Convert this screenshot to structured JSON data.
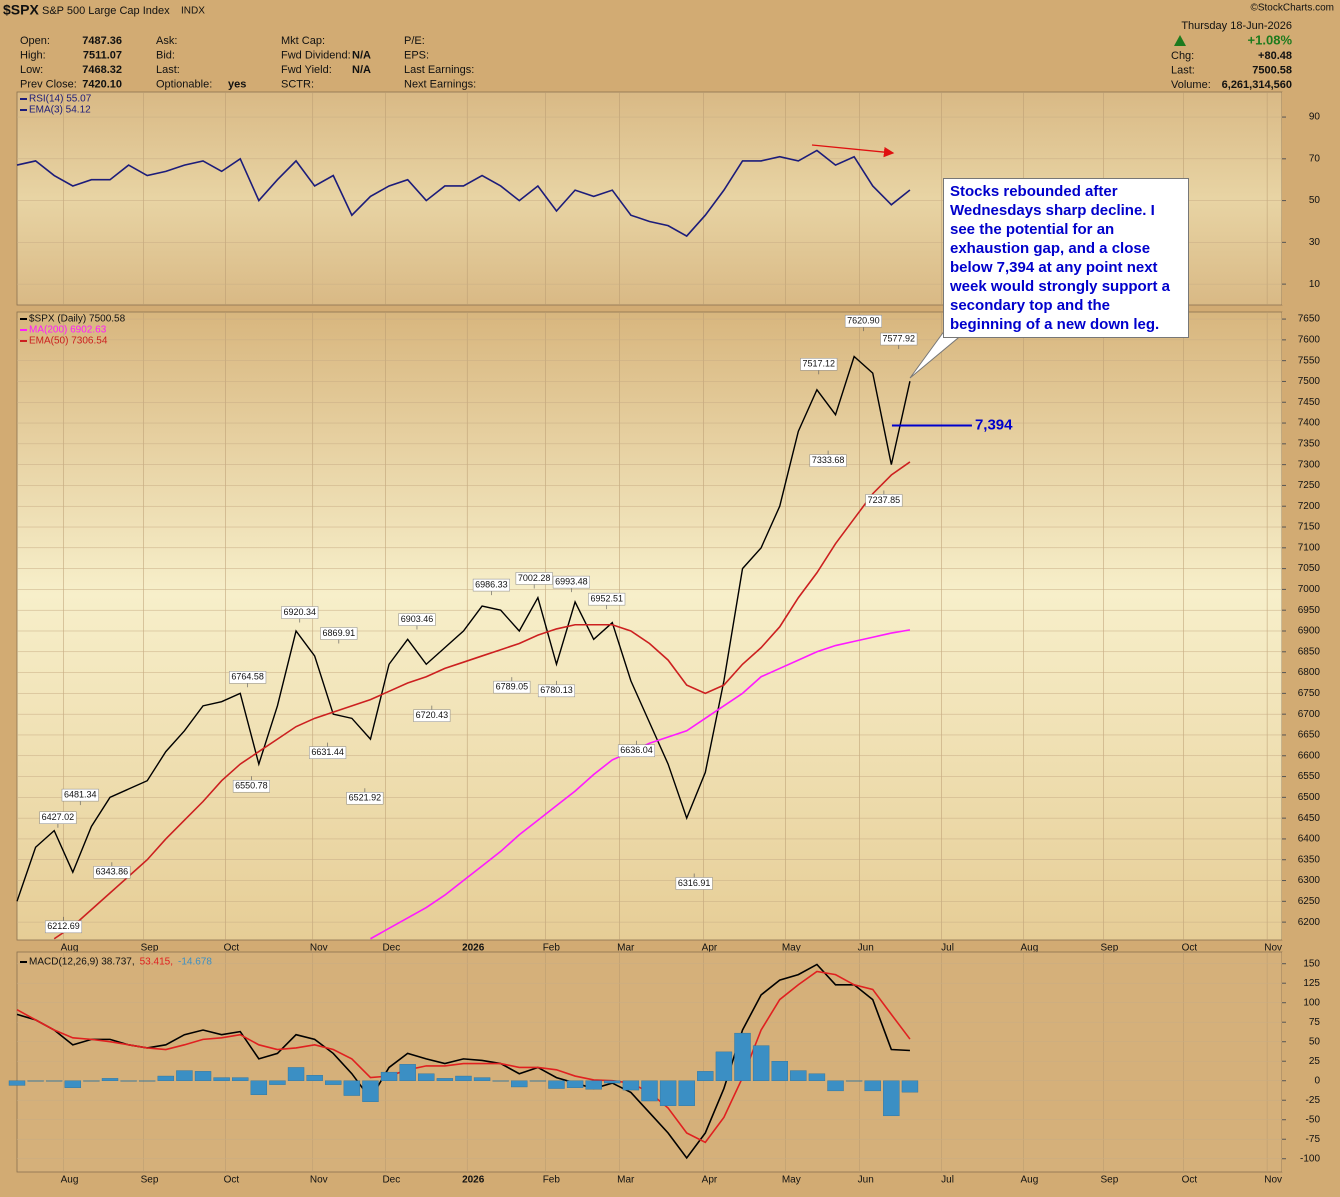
{
  "header": {
    "symbol": "$SPX",
    "name": "S&P 500 Large Cap Index",
    "exchange": "INDX",
    "date": "Thursday  18-Jun-2026",
    "copyright": "©StockCharts.com",
    "change_pct": "+1.08%",
    "fields": [
      [
        {
          "label": "Open:",
          "value": "7487.36"
        },
        {
          "label": "High:",
          "value": "7511.07"
        },
        {
          "label": "Low:",
          "value": "7468.32"
        },
        {
          "label": "Prev Close:",
          "value": "7420.10"
        }
      ],
      [
        {
          "label": "Ask:"
        },
        {
          "label": "Bid:"
        },
        {
          "label": "Last:"
        },
        {
          "label": "Optionable:",
          "value": "yes"
        }
      ],
      [
        {
          "label": "Mkt Cap:"
        },
        {
          "label": "Fwd Dividend:",
          "value": "N/A"
        },
        {
          "label": "Fwd Yield:",
          "value": "N/A"
        },
        {
          "label": "SCTR:"
        }
      ],
      [
        {
          "label": "P/E:"
        },
        {
          "label": "EPS:"
        },
        {
          "label": "Last Earnings:"
        },
        {
          "label": "Next Earnings:"
        }
      ]
    ],
    "quote": [
      {
        "label": "Chg:",
        "value": "+80.48"
      },
      {
        "label": "Last:",
        "value": "7500.58"
      },
      {
        "label": "Volume:",
        "value": "6,261,314,560"
      }
    ]
  },
  "chart_data": [
    {
      "type": "line",
      "grid": true,
      "xlim": [
        0,
        68
      ],
      "ylim": [
        0,
        102
      ],
      "yticks": [
        10,
        30,
        50,
        70,
        90
      ],
      "x": [
        0,
        1,
        2,
        3,
        4,
        5,
        6,
        7,
        8,
        9,
        10,
        11,
        12,
        13,
        14,
        15,
        16,
        17,
        18,
        19,
        20,
        21,
        22,
        23,
        24,
        25,
        26,
        27,
        28,
        29,
        30,
        31,
        32,
        33,
        34,
        35,
        36,
        37,
        38,
        39,
        40,
        41,
        42,
        43,
        44,
        45,
        46,
        47,
        48
      ],
      "series": [
        {
          "name": "RSI(14) 55.07",
          "color": "#1c1c7a",
          "values": [
            67,
            69,
            62,
            57,
            60,
            60,
            67,
            62,
            64,
            67,
            69,
            64,
            70,
            50,
            60,
            69,
            57,
            62,
            43,
            52,
            57,
            60,
            50,
            57,
            57,
            62,
            57,
            50,
            57,
            45,
            55,
            52,
            55,
            43,
            40,
            38,
            33,
            43,
            55,
            69,
            69,
            71,
            69,
            74,
            67,
            71,
            57,
            48,
            55.07
          ]
        }
      ],
      "extra_legend": {
        "name": "EMA(3) 54.12",
        "color": "#1c1c7a"
      }
    },
    {
      "type": "line",
      "grid": true,
      "xlim": [
        0,
        68
      ],
      "ylim": [
        6157,
        7667
      ],
      "yticks": [
        6200,
        6250,
        6300,
        6350,
        6400,
        6450,
        6500,
        6550,
        6600,
        6650,
        6700,
        6750,
        6800,
        6850,
        6900,
        6950,
        7000,
        7050,
        7100,
        7150,
        7200,
        7250,
        7300,
        7350,
        7400,
        7450,
        7500,
        7550,
        7600,
        7650
      ],
      "xticks": [
        {
          "value": 2.5,
          "label": "Aug"
        },
        {
          "value": 6.8,
          "label": "Sep"
        },
        {
          "value": 11.2,
          "label": "Oct"
        },
        {
          "value": 15.9,
          "label": "Nov"
        },
        {
          "value": 19.8,
          "label": "Dec"
        },
        {
          "value": 24.2,
          "label": "2026"
        },
        {
          "value": 28.4,
          "label": "Feb"
        },
        {
          "value": 32.4,
          "label": "Mar"
        },
        {
          "value": 36.9,
          "label": "Apr"
        },
        {
          "value": 41.3,
          "label": "May"
        },
        {
          "value": 45.3,
          "label": "Jun"
        },
        {
          "value": 49.7,
          "label": "Jul"
        },
        {
          "value": 54.1,
          "label": "Aug"
        },
        {
          "value": 58.4,
          "label": "Sep"
        },
        {
          "value": 62.7,
          "label": "Oct"
        },
        {
          "value": 67.2,
          "label": "Nov"
        }
      ],
      "x": [
        0,
        1,
        2,
        3,
        4,
        5,
        6,
        7,
        8,
        9,
        10,
        11,
        12,
        13,
        14,
        15,
        16,
        17,
        18,
        19,
        20,
        21,
        22,
        23,
        24,
        25,
        26,
        27,
        28,
        29,
        30,
        31,
        32,
        33,
        34,
        35,
        36,
        37,
        38,
        39,
        40,
        41,
        42,
        43,
        44,
        45,
        46,
        47,
        48
      ],
      "series": [
        {
          "name": "$SPX (Daily) 7500.58",
          "color": "#000000",
          "values": [
            6250,
            6380,
            6420,
            6320,
            6430,
            6500,
            6520,
            6540,
            6610,
            6660,
            6720,
            6730,
            6750,
            6580,
            6720,
            6900,
            6840,
            6700,
            6690,
            6640,
            6820,
            6880,
            6820,
            6860,
            6900,
            6960,
            6950,
            6900,
            6980,
            6820,
            6970,
            6880,
            6920,
            6780,
            6680,
            6580,
            6450,
            6560,
            6780,
            7050,
            7100,
            7200,
            7380,
            7480,
            7420,
            7560,
            7520,
            7300,
            7500.58
          ]
        },
        {
          "name": "MA(200) 6902.63",
          "color": "#ff1aff",
          "values": [
            null,
            null,
            null,
            null,
            null,
            null,
            null,
            null,
            null,
            null,
            null,
            null,
            null,
            null,
            null,
            null,
            null,
            null,
            null,
            6160,
            6185,
            6210,
            6235,
            6265,
            6300,
            6335,
            6370,
            6410,
            6445,
            6480,
            6515,
            6555,
            6590,
            6610,
            6630,
            6645,
            6660,
            6690,
            6720,
            6750,
            6790,
            6810,
            6830,
            6850,
            6865,
            6875,
            6885,
            6895,
            6902.63
          ]
        },
        {
          "name": "EMA(50) 7306.54",
          "color": "#cc2020",
          "values": [
            null,
            null,
            6160,
            6190,
            6230,
            6270,
            6310,
            6350,
            6400,
            6445,
            6490,
            6540,
            6580,
            6610,
            6640,
            6670,
            6690,
            6705,
            6720,
            6735,
            6755,
            6775,
            6790,
            6810,
            6825,
            6840,
            6855,
            6870,
            6890,
            6905,
            6915,
            6915,
            6915,
            6900,
            6870,
            6830,
            6770,
            6750,
            6770,
            6820,
            6860,
            6910,
            6980,
            7040,
            7110,
            7170,
            7230,
            7275,
            7306.54
          ]
        }
      ],
      "annotations": [
        {
          "x": 2.2,
          "value": 6427.02
        },
        {
          "x": 2.5,
          "value": 6212.69
        },
        {
          "x": 3.4,
          "value": 6481.34
        },
        {
          "x": 5.1,
          "value": 6343.86
        },
        {
          "x": 12.4,
          "value": 6764.58
        },
        {
          "x": 12.6,
          "value": 6550.78
        },
        {
          "x": 15.2,
          "value": 6920.34
        },
        {
          "x": 17.3,
          "value": 6869.91
        },
        {
          "x": 16.7,
          "value": 6631.44
        },
        {
          "x": 18.7,
          "value": 6521.92
        },
        {
          "x": 21.5,
          "value": 6903.46
        },
        {
          "x": 22.3,
          "value": 6720.43
        },
        {
          "x": 25.5,
          "value": 6986.33
        },
        {
          "x": 26.6,
          "value": 6789.05
        },
        {
          "x": 27.8,
          "value": 7002.28
        },
        {
          "x": 29.0,
          "value": 6780.13
        },
        {
          "x": 29.8,
          "value": 6993.48
        },
        {
          "x": 31.7,
          "value": 6952.51
        },
        {
          "x": 33.3,
          "value": 6636.04
        },
        {
          "x": 36.4,
          "value": 6316.91
        },
        {
          "x": 43.1,
          "value": 7517.12
        },
        {
          "x": 43.6,
          "value": 7333.68
        },
        {
          "x": 45.5,
          "value": 7620.9,
          "label": "7620.90"
        },
        {
          "x": 47.4,
          "value": 7577.92
        },
        {
          "x": 46.6,
          "value": 7237.85
        }
      ],
      "level": {
        "value": 7394,
        "label": "7,394",
        "color": "#0000cc"
      },
      "callout": "Stocks rebounded after Wednesdays sharp decline. I see the potential for an exhaustion gap, and a close below 7,394 at any point next week would strongly support a secondary top and the beginning of a new down leg."
    },
    {
      "type": "line",
      "grid": true,
      "legend_flow": "row",
      "xlim": [
        0,
        68
      ],
      "ylim": [
        -117,
        165
      ],
      "yticks": [
        -100,
        -75,
        -50,
        -25,
        0,
        25,
        50,
        75,
        100,
        125,
        150
      ],
      "xticks": [
        {
          "value": 2.5,
          "label": "Aug"
        },
        {
          "value": 6.8,
          "label": "Sep"
        },
        {
          "value": 11.2,
          "label": "Oct"
        },
        {
          "value": 15.9,
          "label": "Nov"
        },
        {
          "value": 19.8,
          "label": "Dec"
        },
        {
          "value": 24.2,
          "label": "2026"
        },
        {
          "value": 28.4,
          "label": "Feb"
        },
        {
          "value": 32.4,
          "label": "Mar"
        },
        {
          "value": 36.9,
          "label": "Apr"
        },
        {
          "value": 41.3,
          "label": "May"
        },
        {
          "value": 45.3,
          "label": "Jun"
        },
        {
          "value": 49.7,
          "label": "Jul"
        },
        {
          "value": 54.1,
          "label": "Aug"
        },
        {
          "value": 58.4,
          "label": "Sep"
        },
        {
          "value": 62.7,
          "label": "Oct"
        },
        {
          "value": 67.2,
          "label": "Nov"
        }
      ],
      "x": [
        0,
        1,
        2,
        3,
        4,
        5,
        6,
        7,
        8,
        9,
        10,
        11,
        12,
        13,
        14,
        15,
        16,
        17,
        18,
        19,
        20,
        21,
        22,
        23,
        24,
        25,
        26,
        27,
        28,
        29,
        30,
        31,
        32,
        33,
        34,
        35,
        36,
        37,
        38,
        39,
        40,
        41,
        42,
        43,
        44,
        45,
        46,
        47,
        48
      ],
      "series": [
        {
          "name": "MACD(12,26,9) 38.737,",
          "color": "#000000",
          "values": [
            85,
            78,
            65,
            46,
            53,
            53,
            46,
            42,
            46,
            59,
            65,
            59,
            63,
            28,
            35,
            59,
            53,
            35,
            9,
            -23,
            17,
            35,
            28,
            22,
            28,
            26,
            22,
            9,
            17,
            4,
            -3,
            -10,
            -3,
            -15,
            -41,
            -67,
            -99,
            -67,
            -10,
            65,
            110,
            129,
            136,
            149,
            123,
            123,
            104,
            40,
            38.737
          ]
        },
        {
          "name": "53.415,",
          "color": "#e02020",
          "values": [
            91,
            78,
            65,
            55,
            53,
            50,
            46,
            42,
            40,
            46,
            53,
            55,
            59,
            46,
            40,
            42,
            46,
            40,
            28,
            4,
            6,
            14,
            19,
            19,
            22,
            22,
            22,
            17,
            17,
            14,
            6,
            1,
            0,
            -3,
            -15,
            -35,
            -67,
            -79,
            -47,
            4,
            65,
            104,
            123,
            140,
            136,
            123,
            117,
            85,
            53.415
          ]
        },
        {
          "name": "-14.678",
          "color": "#3b8fc4",
          "type": "bar",
          "values": [
            -6,
            0,
            0,
            -9,
            0,
            3,
            0,
            0,
            6,
            13,
            12,
            4,
            4,
            -18,
            -5,
            17,
            7,
            -5,
            -19,
            -27,
            11,
            21,
            9,
            3,
            6,
            4,
            0,
            -8,
            0,
            -10,
            -9,
            -11,
            -3,
            -12,
            -26,
            -32,
            -32,
            12,
            37,
            61,
            45,
            25,
            13,
            9,
            -13,
            0,
            -13,
            -45,
            -14.678
          ]
        }
      ]
    }
  ]
}
